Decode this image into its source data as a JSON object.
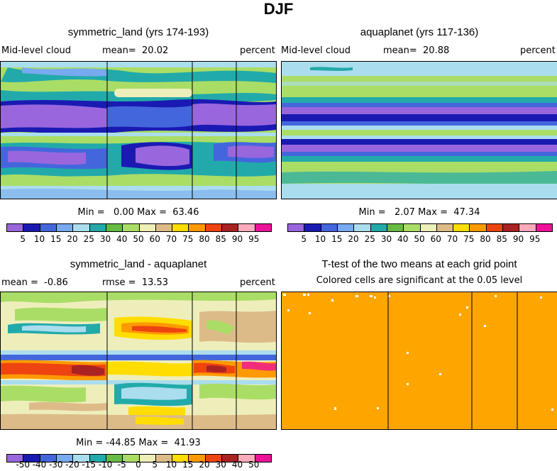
{
  "title": "DJF",
  "panels": [
    {
      "id": "p1",
      "title": "symmetric_land (yrs 174-193)",
      "left_label": "Mid-level cloud",
      "stat1": "mean=  20.02",
      "stat2": "",
      "units": "percent",
      "minmax": "Min =   0.00 Max =  63.46",
      "colorbar": "cb_abs"
    },
    {
      "id": "p2",
      "title": "aquaplanet (yrs 117-136)",
      "left_label": "Mid-level cloud",
      "stat1": "mean=  20.88",
      "stat2": "",
      "units": "percent",
      "minmax": "Min =   2.07 Max =  47.34",
      "colorbar": "cb_abs"
    },
    {
      "id": "p3",
      "title": "symmetric_land - aquaplanet",
      "left_label": "mean =  -0.86",
      "stat1": "rmse =  13.53",
      "stat2": "",
      "units": "percent",
      "minmax": "Min = -44.85 Max =  41.93",
      "colorbar": "cb_diff"
    },
    {
      "id": "p4",
      "title": "T-test of the two means at each grid point",
      "subtitle": "Colored cells are significant at the 0.05 level"
    }
  ],
  "colorbars": {
    "cb_abs": {
      "colors": [
        "#9966dd",
        "#1a1ab3",
        "#4466dd",
        "#77aaee",
        "#aaddee",
        "#22aaaa",
        "#66bb44",
        "#aadd66",
        "#eeeebb",
        "#ddbb88",
        "#ffdd00",
        "#ff9900",
        "#ee4411",
        "#aa2222",
        "#ffaabb",
        "#ee1199"
      ],
      "labels": [
        "5",
        "10",
        "15",
        "20",
        "25",
        "30",
        "40",
        "50",
        "60",
        "70",
        "75",
        "80",
        "85",
        "90",
        "95"
      ]
    },
    "cb_diff": {
      "colors": [
        "#9966dd",
        "#1a1ab3",
        "#4466dd",
        "#77aaee",
        "#aaddee",
        "#22aaaa",
        "#66bb44",
        "#aadd66",
        "#eeeebb",
        "#ddbb88",
        "#ffdd00",
        "#ff9900",
        "#ee4411",
        "#aa2222",
        "#ffaabb",
        "#ee1199"
      ],
      "labels": [
        "-50",
        "-40",
        "-30",
        "-20",
        "-15",
        "-10",
        "-5",
        "0",
        "5",
        "10",
        "15",
        "20",
        "30",
        "40",
        "50"
      ]
    }
  },
  "chart_data": [
    {
      "type": "heatmap",
      "title": "symmetric_land (yrs 174-193)",
      "variable": "Mid-level cloud",
      "units": "percent",
      "mean": 20.02,
      "min": 0.0,
      "max": 63.46,
      "contour_levels": [
        5,
        10,
        15,
        20,
        25,
        30,
        40,
        50,
        60,
        70,
        75,
        80,
        85,
        90,
        95
      ]
    },
    {
      "type": "heatmap",
      "title": "aquaplanet (yrs 117-136)",
      "variable": "Mid-level cloud",
      "units": "percent",
      "mean": 20.88,
      "min": 2.07,
      "max": 47.34,
      "contour_levels": [
        5,
        10,
        15,
        20,
        25,
        30,
        40,
        50,
        60,
        70,
        75,
        80,
        85,
        90,
        95
      ]
    },
    {
      "type": "heatmap",
      "title": "symmetric_land - aquaplanet",
      "units": "percent",
      "mean": -0.86,
      "rmse": 13.53,
      "min": -44.85,
      "max": 41.93,
      "contour_levels": [
        -50,
        -40,
        -30,
        -20,
        -15,
        -10,
        -5,
        0,
        5,
        10,
        15,
        20,
        30,
        40,
        50
      ]
    },
    {
      "type": "heatmap",
      "title": "T-test of the two means at each grid point",
      "subtitle": "Colored cells are significant at the 0.05 level",
      "significant_color": "#ffa500"
    }
  ]
}
